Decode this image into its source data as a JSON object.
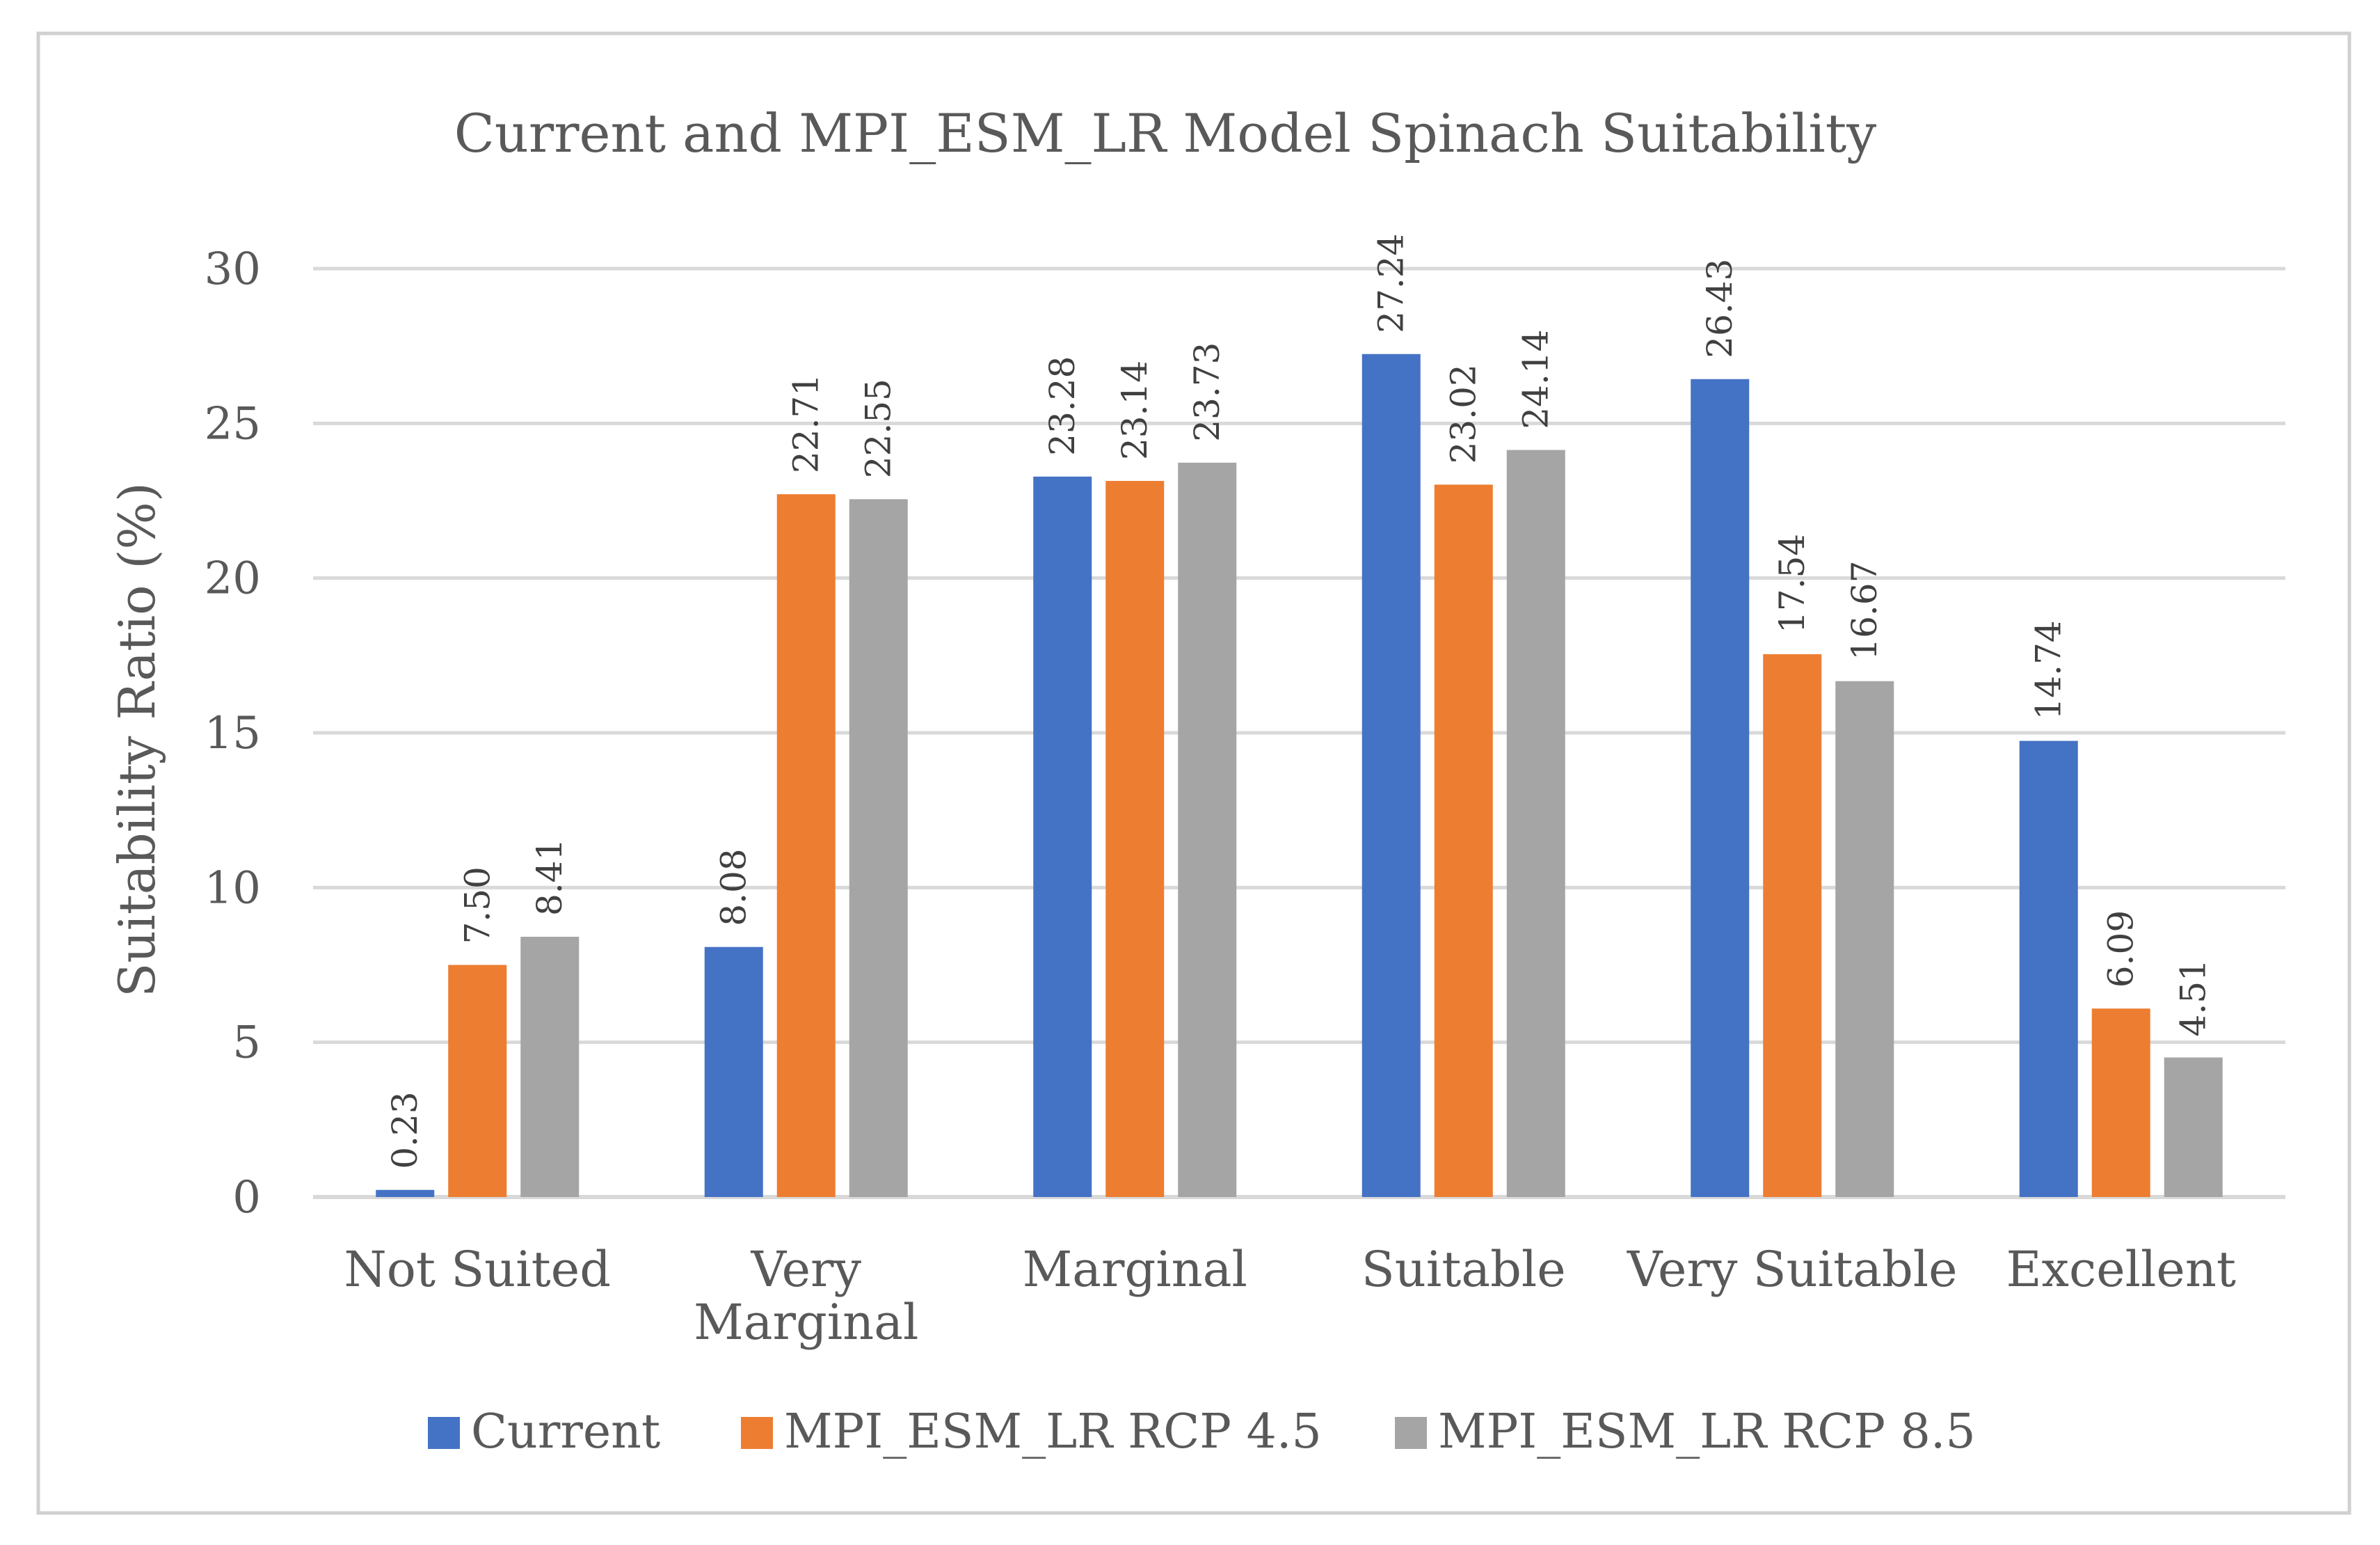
{
  "chart_data": {
    "type": "bar",
    "title": "Current and MPI_ESM_LR Model Spinach Suitability",
    "xlabel": "",
    "ylabel": "Suitability Ratio (%)",
    "ylim": [
      0,
      30
    ],
    "yticks": [
      0,
      5,
      10,
      15,
      20,
      25,
      30
    ],
    "grid": true,
    "legend_position": "bottom",
    "categories": [
      [
        "Not Suited"
      ],
      [
        "Very",
        "Marginal"
      ],
      [
        "Marginal"
      ],
      [
        "Suitable"
      ],
      [
        "Very Suitable"
      ],
      [
        "Excellent"
      ]
    ],
    "series": [
      {
        "name": "Current",
        "color": "#4472C4",
        "values": [
          0.23,
          8.08,
          23.28,
          27.24,
          26.43,
          14.74
        ],
        "labels": [
          "0.23",
          "8.08",
          "23.28",
          "27.24",
          "26.43",
          "14.74"
        ]
      },
      {
        "name": "MPI_ESM_LR RCP 4.5",
        "color": "#ED7D31",
        "values": [
          7.5,
          22.71,
          23.14,
          23.02,
          17.54,
          6.09
        ],
        "labels": [
          "7.50",
          "22.71",
          "23.14",
          "23.02",
          "17.54",
          "6.09"
        ]
      },
      {
        "name": "MPI_ESM_LR RCP 8.5",
        "color": "#A5A5A5",
        "values": [
          8.41,
          22.55,
          23.73,
          24.14,
          16.67,
          4.51
        ],
        "labels": [
          "8.41",
          "22.55",
          "23.73",
          "24.14",
          "16.67",
          "4.51"
        ]
      }
    ]
  }
}
